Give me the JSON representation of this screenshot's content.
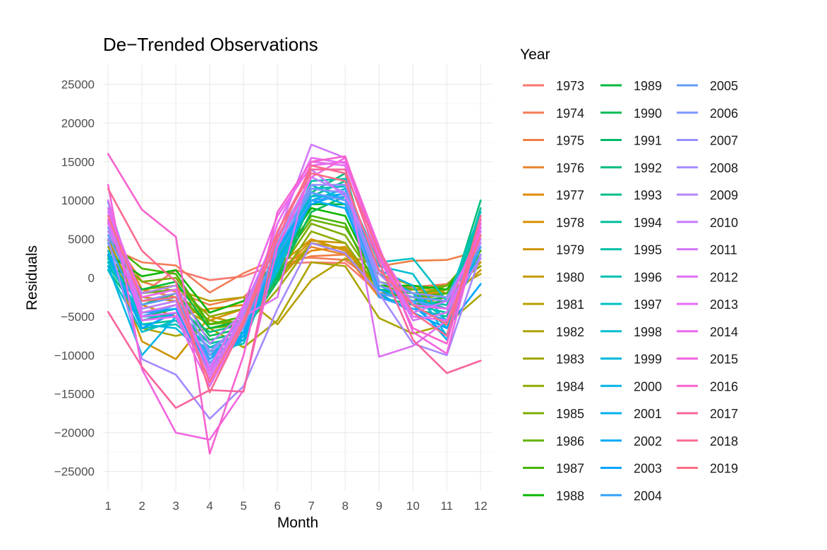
{
  "chart_data": {
    "type": "line",
    "title": "De−Trended Observations",
    "xlabel": "Month",
    "ylabel": "Residuals",
    "legend_title": "Year",
    "legend_position": "right",
    "grid": true,
    "xlim": [
      0.85,
      12.35
    ],
    "ylim": [
      -27500,
      27500
    ],
    "x": [
      1,
      2,
      3,
      4,
      5,
      6,
      7,
      8,
      9,
      10,
      11,
      12
    ],
    "x_tick_labels": [
      "1",
      "2",
      "3",
      "4",
      "5",
      "6",
      "7",
      "8",
      "9",
      "10",
      "11",
      "12"
    ],
    "y_ticks": [
      -25000,
      -20000,
      -15000,
      -10000,
      -5000,
      0,
      5000,
      10000,
      15000,
      20000,
      25000
    ],
    "y_tick_labels": [
      "−25000",
      "−20000",
      "−15000",
      "−10000",
      "−5000",
      "0",
      "5000",
      "10000",
      "15000",
      "20000",
      "25000"
    ],
    "series": [
      {
        "name": "1973",
        "color": "#F8766D",
        "values": [
          5500,
          -2000,
          1000,
          -300,
          200,
          1800,
          2000,
          1900,
          -2000,
          -1500,
          -1000,
          3000
        ]
      },
      {
        "name": "1974",
        "color": "#F47C59",
        "values": [
          4000,
          2000,
          1600,
          -1900,
          600,
          2500,
          2600,
          2300,
          -1000,
          -1200,
          -800,
          2500
        ]
      },
      {
        "name": "1975",
        "color": "#EF7F46",
        "values": [
          6000,
          -500,
          -1800,
          -3500,
          -2500,
          1500,
          2800,
          3000,
          1500,
          2200,
          2300,
          3500
        ]
      },
      {
        "name": "1976",
        "color": "#E8852D",
        "values": [
          7200,
          -1500,
          -2500,
          -4500,
          -3000,
          1000,
          4000,
          3000,
          -2500,
          -1500,
          -2000,
          4500
        ]
      },
      {
        "name": "1977",
        "color": "#E08B00",
        "values": [
          4500,
          -3500,
          -5000,
          -4000,
          -3500,
          500,
          3500,
          4000,
          -1500,
          -3500,
          -2500,
          2000
        ]
      },
      {
        "name": "1978",
        "color": "#D89000",
        "values": [
          6500,
          -2500,
          -3000,
          -5500,
          -4000,
          1500,
          5000,
          3500,
          -1000,
          -2500,
          -1500,
          1500
        ]
      },
      {
        "name": "1979",
        "color": "#CF9400",
        "values": [
          3500,
          -8200,
          -10500,
          -5000,
          -6000,
          500,
          4800,
          4500,
          -1500,
          -2500,
          -3000,
          1000
        ]
      },
      {
        "name": "1980",
        "color": "#C49A00",
        "values": [
          5000,
          -4500,
          -3500,
          -6000,
          -5500,
          -500,
          4500,
          3800,
          -2000,
          -3000,
          -1500,
          2000
        ]
      },
      {
        "name": "1981",
        "color": "#B8A000",
        "values": [
          2000,
          -2500,
          -1500,
          -3000,
          -2500,
          -6000,
          -300,
          2500,
          500,
          -1000,
          -2000,
          500
        ]
      },
      {
        "name": "1982",
        "color": "#ABA300",
        "values": [
          3000,
          -6500,
          -7500,
          -6500,
          -9000,
          -5500,
          2000,
          1500,
          -5200,
          -7200,
          -6000,
          -2200
        ]
      },
      {
        "name": "1983",
        "color": "#9DA700",
        "values": [
          4000,
          -3000,
          -2500,
          -5500,
          -6500,
          -1500,
          4500,
          3200,
          -2000,
          -3000,
          -2000,
          2500
        ]
      },
      {
        "name": "1984",
        "color": "#8EAB00",
        "values": [
          2500,
          -1500,
          -1000,
          -5000,
          -4000,
          -500,
          6000,
          4500,
          -1500,
          -2500,
          -1000,
          1500
        ]
      },
      {
        "name": "1985",
        "color": "#7CAE00",
        "values": [
          3500,
          -500,
          0,
          -6000,
          -5500,
          500,
          7000,
          5500,
          -1000,
          -2000,
          -1500,
          3000
        ]
      },
      {
        "name": "1986",
        "color": "#64B200",
        "values": [
          2800,
          -2000,
          -1500,
          -6500,
          -6000,
          1500,
          7500,
          6500,
          -500,
          -1500,
          -1000,
          4000
        ]
      },
      {
        "name": "1987",
        "color": "#45B500",
        "values": [
          4800,
          1200,
          500,
          -6000,
          -5000,
          2000,
          8000,
          7000,
          -2000,
          -2500,
          -2000,
          3500
        ]
      },
      {
        "name": "1988",
        "color": "#0CB702",
        "values": [
          3000,
          200,
          1000,
          -4500,
          -3000,
          2500,
          9000,
          8000,
          -1000,
          -1000,
          -1500,
          4500
        ]
      },
      {
        "name": "1989",
        "color": "#00B83C",
        "values": [
          2000,
          -1500,
          -500,
          -6500,
          -5500,
          1000,
          9500,
          9500,
          -1500,
          -2000,
          -2500,
          5500
        ]
      },
      {
        "name": "1990",
        "color": "#00BA55",
        "values": [
          1500,
          -3500,
          -2000,
          -7500,
          -6500,
          0,
          8500,
          10500,
          -2500,
          -3500,
          -3000,
          6500
        ]
      },
      {
        "name": "1991",
        "color": "#00BB69",
        "values": [
          2500,
          -4000,
          -3000,
          -8000,
          -7000,
          -500,
          10000,
          11500,
          -2000,
          -3000,
          -2500,
          7000
        ]
      },
      {
        "name": "1992",
        "color": "#00BD7B",
        "values": [
          1000,
          -5000,
          -4000,
          -7000,
          -6000,
          1500,
          11000,
          13500,
          -1500,
          -2500,
          -4000,
          10000
        ]
      },
      {
        "name": "1993",
        "color": "#00BE8B",
        "values": [
          2000,
          -5500,
          -4500,
          -8500,
          -7500,
          500,
          10500,
          12500,
          -2500,
          -4000,
          -5000,
          9000
        ]
      },
      {
        "name": "1994",
        "color": "#00BF9A",
        "values": [
          3000,
          -6000,
          -5500,
          -9000,
          -8000,
          2000,
          12000,
          12000,
          -1500,
          -3500,
          -4500,
          8000
        ]
      },
      {
        "name": "1995",
        "color": "#00C0A9",
        "values": [
          1500,
          -4500,
          -4000,
          -8500,
          -7500,
          1000,
          11500,
          11000,
          -1000,
          -3000,
          -3500,
          7500
        ]
      },
      {
        "name": "1996",
        "color": "#00C1B7",
        "values": [
          2500,
          -6500,
          -6000,
          -9500,
          -8500,
          2500,
          12500,
          12800,
          -500,
          -2000,
          -5500,
          6500
        ]
      },
      {
        "name": "1997",
        "color": "#00C0C4",
        "values": [
          1000,
          -7000,
          -5500,
          -10000,
          -8000,
          1500,
          11500,
          11800,
          2000,
          2500,
          -3000,
          8500
        ]
      },
      {
        "name": "1998",
        "color": "#00BDD0",
        "values": [
          2000,
          -5000,
          -5000,
          -9000,
          -7000,
          3000,
          12000,
          10000,
          1500,
          500,
          -6000,
          6000
        ]
      },
      {
        "name": "1999",
        "color": "#00BADC",
        "values": [
          3500,
          -6000,
          -6500,
          -10500,
          -7500,
          2000,
          10500,
          10800,
          1000,
          -1000,
          -7500,
          7500
        ]
      },
      {
        "name": "2000",
        "color": "#00B5E7",
        "values": [
          1500,
          -10000,
          -5000,
          -10000,
          -6500,
          1000,
          10000,
          11500,
          500,
          -2000,
          -6500,
          4000
        ]
      },
      {
        "name": "2001",
        "color": "#00B0F0",
        "values": [
          9800,
          -4000,
          -3000,
          -11000,
          -8000,
          3500,
          11000,
          9500,
          -1000,
          -3000,
          -8000,
          5500
        ]
      },
      {
        "name": "2002",
        "color": "#00AAF8",
        "values": [
          9000,
          -4500,
          -4000,
          -11500,
          -7500,
          2000,
          10000,
          9000,
          -1500,
          -3500,
          -7500,
          6500
        ]
      },
      {
        "name": "2003",
        "color": "#00A5FF",
        "values": [
          3000,
          -6500,
          -4500,
          -12000,
          -7000,
          4000,
          9500,
          11000,
          -2000,
          -4500,
          -6500,
          -800
        ]
      },
      {
        "name": "2004",
        "color": "#35A2FF",
        "values": [
          4500,
          -5000,
          -3500,
          -10500,
          -6000,
          3000,
          10000,
          10500,
          -2500,
          -4000,
          -5500,
          3000
        ]
      },
      {
        "name": "2005",
        "color": "#619CFF",
        "values": [
          5500,
          -3500,
          -2500,
          -11000,
          -6500,
          4000,
          11000,
          10000,
          -2000,
          -3000,
          -4000,
          4000
        ]
      },
      {
        "name": "2006",
        "color": "#7F96FF",
        "values": [
          6500,
          -2500,
          -1500,
          -10000,
          -5000,
          4500,
          11500,
          11000,
          -1000,
          -2500,
          -3000,
          4500
        ]
      },
      {
        "name": "2007",
        "color": "#9590FF",
        "values": [
          7500,
          -3000,
          -2000,
          -9500,
          -5500,
          5000,
          12000,
          12000,
          -500,
          -2000,
          -2500,
          5000
        ]
      },
      {
        "name": "2008",
        "color": "#A58AFF",
        "values": [
          5000,
          -10500,
          -12500,
          -18200,
          -14000,
          -4000,
          4500,
          3200,
          -2000,
          -8500,
          -10000,
          3000
        ]
      },
      {
        "name": "2009",
        "color": "#B385FF",
        "values": [
          6000,
          -2000,
          -1000,
          -8500,
          -4500,
          5000,
          13000,
          11000,
          500,
          -3500,
          -4000,
          2500
        ]
      },
      {
        "name": "2010",
        "color": "#C77CFF",
        "values": [
          8500,
          -4000,
          -3000,
          -11500,
          -4000,
          6000,
          14000,
          10500,
          2500,
          -4500,
          -3000,
          4500
        ]
      },
      {
        "name": "2011",
        "color": "#D377F8",
        "values": [
          7000,
          -4500,
          -3500,
          -12500,
          -4500,
          5500,
          17200,
          15500,
          2500,
          -5500,
          -4500,
          5000
        ]
      },
      {
        "name": "2012",
        "color": "#DE71F1",
        "values": [
          10000,
          -5000,
          -4500,
          -13000,
          -5000,
          -2500,
          15000,
          14500,
          -10200,
          -8800,
          -5500,
          5500
        ]
      },
      {
        "name": "2013",
        "color": "#E76BF3",
        "values": [
          7500,
          -5500,
          -5000,
          -14000,
          -6000,
          7000,
          15500,
          14800,
          3000,
          -5000,
          -5500,
          6000
        ]
      },
      {
        "name": "2014",
        "color": "#ED68ED",
        "values": [
          9000,
          -2500,
          -1500,
          -12000,
          -3500,
          8000,
          14500,
          15000,
          3500,
          -3500,
          -4000,
          6500
        ]
      },
      {
        "name": "2015",
        "color": "#F265DF",
        "values": [
          12000,
          -11800,
          -20000,
          -20900,
          -14500,
          4000,
          13000,
          15500,
          4000,
          -7000,
          -9800,
          7000
        ]
      },
      {
        "name": "2016",
        "color": "#F663CF",
        "values": [
          16000,
          8800,
          5300,
          -22700,
          -10000,
          8500,
          15000,
          15700,
          3000,
          -6500,
          -8500,
          7500
        ]
      },
      {
        "name": "2017",
        "color": "#F8649E",
        "values": [
          -4400,
          -11500,
          -16800,
          -14500,
          -14700,
          6000,
          14000,
          14000,
          2000,
          -8000,
          -12300,
          -10700
        ]
      },
      {
        "name": "2018",
        "color": "#FB6B90",
        "values": [
          11500,
          3500,
          -500,
          -14800,
          -6000,
          5000,
          14500,
          13500,
          3500,
          -4500,
          -7500,
          8000
        ]
      },
      {
        "name": "2019",
        "color": "#FD6F86",
        "values": [
          8000,
          -3000,
          -2500,
          -13500,
          -5500,
          6000,
          13500,
          12500,
          1000,
          -3500,
          -6000,
          5500
        ]
      }
    ]
  }
}
